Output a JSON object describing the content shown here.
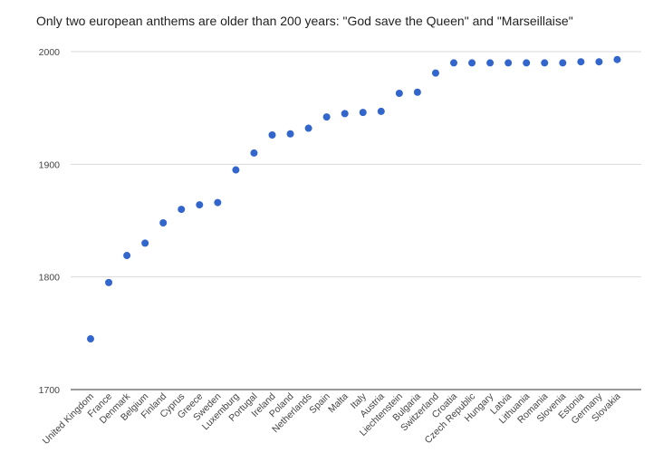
{
  "chart_data": {
    "type": "scatter",
    "title": "Only two european anthems are older than 200 years: \"God save the Queen\" and \"Marseillaise\"",
    "xlabel": "",
    "ylabel": "",
    "ylim": [
      1700,
      2000
    ],
    "yticks": [
      1700,
      1800,
      1900,
      2000
    ],
    "grid": true,
    "legend": "none",
    "point_color": "#3366cc",
    "categories": [
      "United Kingdom",
      "France",
      "Denmark",
      "Belgium",
      "Finland",
      "Cyprus",
      "Greece",
      "Sweden",
      "Luxemburg",
      "Portugal",
      "Ireland",
      "Poland",
      "Netherlands",
      "Spain",
      "Malta",
      "Italy",
      "Austria",
      "Liechtenstein",
      "Bulgaria",
      "Switzerland",
      "Croatia",
      "Czech Republic",
      "Hungary",
      "Latvia",
      "Lithuania",
      "Romania",
      "Slovenia",
      "Estonia",
      "Germany",
      "Slovakia"
    ],
    "values": [
      1745,
      1795,
      1819,
      1830,
      1848,
      1860,
      1864,
      1866,
      1895,
      1910,
      1926,
      1927,
      1932,
      1942,
      1945,
      1946,
      1947,
      1963,
      1964,
      1981,
      1990,
      1990,
      1990,
      1990,
      1990,
      1990,
      1990,
      1991,
      1991,
      1993
    ]
  }
}
